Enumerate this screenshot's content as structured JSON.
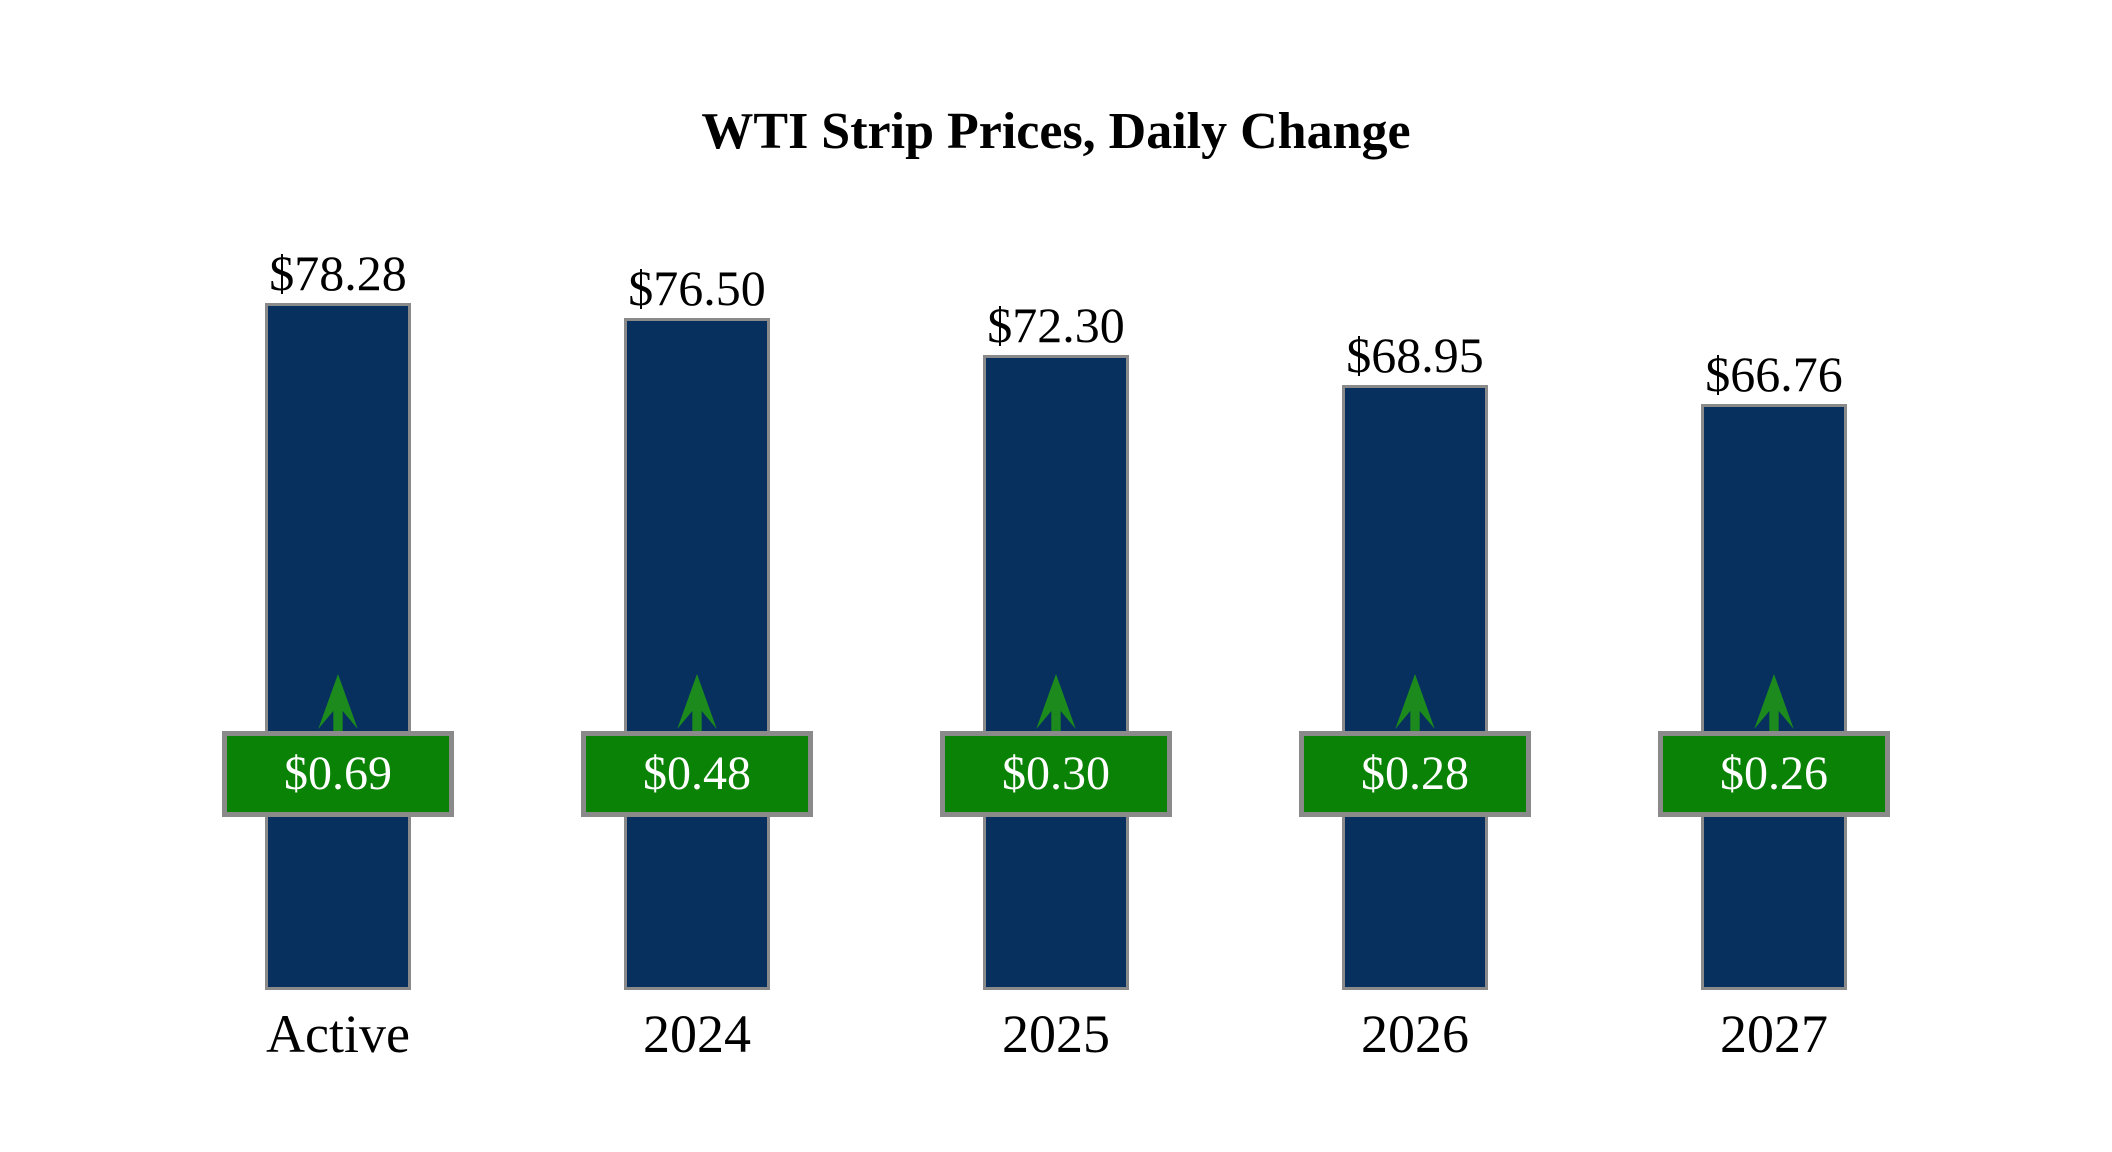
{
  "page": {
    "background": "#ffffff"
  },
  "chart_data": {
    "type": "bar",
    "title": "WTI Strip Prices, Daily Change",
    "categories": [
      "Active",
      "2024",
      "2025",
      "2026",
      "2027"
    ],
    "series": [
      {
        "name": "Strip Price",
        "values": [
          78.28,
          76.5,
          72.3,
          68.95,
          66.76
        ]
      },
      {
        "name": "Daily Change",
        "values": [
          0.69,
          0.48,
          0.3,
          0.28,
          0.26
        ]
      }
    ],
    "points": [
      {
        "category": "Active",
        "price": 78.28,
        "price_label": "$78.28",
        "change": 0.69,
        "change_label": "$0.69",
        "direction": "up"
      },
      {
        "category": "2024",
        "price": 76.5,
        "price_label": "$76.50",
        "change": 0.48,
        "change_label": "$0.48",
        "direction": "up"
      },
      {
        "category": "2025",
        "price": 72.3,
        "price_label": "$72.30",
        "change": 0.3,
        "change_label": "$0.30",
        "direction": "up"
      },
      {
        "category": "2026",
        "price": 68.95,
        "price_label": "$68.95",
        "change": 0.28,
        "change_label": "$0.28",
        "direction": "up"
      },
      {
        "category": "2027",
        "price": 66.76,
        "price_label": "$66.76",
        "change": 0.26,
        "change_label": "$0.26",
        "direction": "up"
      }
    ],
    "baseline": 0,
    "ylim": [
      0,
      78.28
    ],
    "axes_visible": false,
    "grid": false,
    "legend": "none"
  },
  "colors": {
    "bar": "#07305f",
    "bar_border": "#8a8a8a",
    "badge": "#0a8206",
    "badge_border": "#8a8a8a",
    "badge_text": "#ffffff",
    "arrow": "#1c8a1c",
    "title_text": "#000000",
    "label_text": "#000000"
  }
}
